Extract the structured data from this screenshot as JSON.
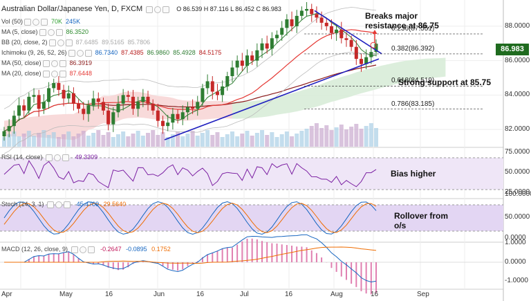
{
  "header": {
    "symbol": "Australian Dollar/Japanese Yen, D, FXCM",
    "ohlc": "O 86.539  H 87.116  L 86.452  C 86.983"
  },
  "indicators": [
    {
      "name": "Vol (50)",
      "values": [
        "70K",
        "245K"
      ],
      "colors": [
        "#2e9e2e",
        "#1565c0"
      ]
    },
    {
      "name": "MA (5, close)",
      "values": [
        "86.3520"
      ],
      "colors": [
        "#2e8b2e"
      ]
    },
    {
      "name": "BB (20, close, 2)",
      "values": [
        "87.6485",
        "89.5165",
        "85.7806"
      ],
      "colors": [
        "#aaaaaa",
        "#aaaaaa",
        "#aaaaaa"
      ]
    },
    {
      "name": "Ichimoku (9, 26, 52, 26)",
      "values": [
        "86.7340",
        "87.4385",
        "86.9860",
        "85.4928",
        "84.5175"
      ],
      "colors": [
        "#1565c0",
        "#b71c1c",
        "#2e7d32",
        "#2e7d32",
        "#b71c1c"
      ]
    },
    {
      "name": "MA (50, close)",
      "values": [
        "86.3919"
      ],
      "colors": [
        "#8b1a1a"
      ]
    },
    {
      "name": "MA (20, close)",
      "values": [
        "87.6448"
      ],
      "colors": [
        "#e53935"
      ]
    }
  ],
  "last_price": "86.983",
  "annotations": {
    "breaks": "Breaks major\nresistance at 86.75",
    "support": "Strong support at 85.75",
    "bias": "Bias higher",
    "rollover": "Rollover from\no/s"
  },
  "fib_levels": [
    {
      "label": "0.236(87.551)",
      "value": 87.551
    },
    {
      "label": "0.382(86.392)",
      "value": 86.392
    },
    {
      "label": "0.618(84.519)",
      "value": 84.519
    },
    {
      "label": "0.786(83.185)",
      "value": 83.185
    }
  ],
  "rsi": {
    "name": "RSI (14, close)",
    "value": "49.3309",
    "ticks": [
      "75.0000",
      "50.0000",
      "25.0000"
    ]
  },
  "stoch": {
    "name": "Stoch (14, 3, 1)",
    "values": [
      "45.4709",
      "29.5640"
    ],
    "ticks": [
      "100.0000",
      "50.0000",
      "0.0000"
    ]
  },
  "macd": {
    "name": "MACD (12, 26, close, 9)",
    "values": [
      "-0.2647",
      "-0.0895",
      "0.1752"
    ],
    "ticks": [
      "1.0000",
      "0.0000",
      "-1.0000"
    ]
  },
  "price_ticks": [
    "88.0000",
    "86.0000",
    "84.0000",
    "82.0000"
  ],
  "x_ticks": [
    "Apr",
    "May",
    "16",
    "Jun",
    "16",
    "Jul",
    "16",
    "Aug",
    "16",
    "Sep"
  ],
  "colors": {
    "up": "#2e7d32",
    "down": "#c62828",
    "cloud_green": "#d8ecd8",
    "cloud_red": "#f7d6d6",
    "trend": "#1f1fbf",
    "arrow": "#e53935"
  },
  "chart_data": {
    "type": "candlestick",
    "title": "Australian Dollar/Japanese Yen, D, FXCM",
    "ylim": [
      81,
      89.2
    ],
    "last_close": 86.983,
    "close_series": [
      81.9,
      82.2,
      82.8,
      83.4,
      83.1,
      83.9,
      84.0,
      83.2,
      83.6,
      84.4,
      84.7,
      84.3,
      83.8,
      84.1,
      83.5,
      83.2,
      82.9,
      83.4,
      83.8,
      83.6,
      83.1,
      82.3,
      83.0,
      83.5,
      84.0,
      83.9,
      83.2,
      83.6,
      83.9,
      83.5,
      83.1,
      82.5,
      82.2,
      82.4,
      82.9,
      82.6,
      83.0,
      83.3,
      83.2,
      83.6,
      84.4,
      84.8,
      84.2,
      84.0,
      84.5,
      85.1,
      85.6,
      86.0,
      85.7,
      86.3,
      86.0,
      86.6,
      87.0,
      86.7,
      87.3,
      87.5,
      87.9,
      88.4,
      88.0,
      88.6,
      88.9,
      89.0,
      88.7,
      88.5,
      88.2,
      88.0,
      87.6,
      87.8,
      87.3,
      87.2,
      86.8,
      86.1,
      85.8,
      86.2,
      86.5,
      86.983
    ]
  }
}
